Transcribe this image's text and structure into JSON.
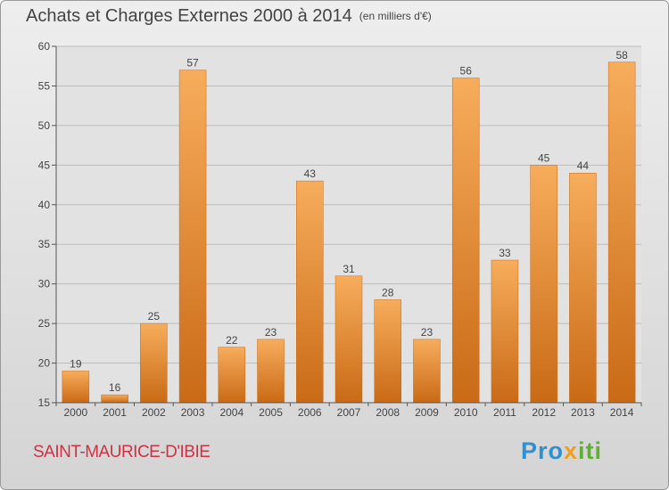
{
  "header": {
    "title": "Achats et Charges Externes 2000 à 2014",
    "unit": "(en milliers d'€)"
  },
  "footer": {
    "commune": "SAINT-MAURICE-D'IBIE",
    "logo": {
      "p1": "Pro",
      "p2": "x",
      "p3": "iti"
    }
  },
  "colors": {
    "bar": "#ef9438",
    "bar_light": "#f7ad5c",
    "bar_dark": "#c96a16",
    "grid": "#bdbdbd",
    "text": "#444444",
    "commune": "#cc3344",
    "logo_blue": "#2f8fd0",
    "logo_pink": "#e84c8c",
    "logo_orange": "#f0a020",
    "logo_green": "#5fb030"
  },
  "chart_data": {
    "type": "bar",
    "title": "Achats et Charges Externes 2000 à 2014",
    "subtitle": "(en milliers d'€)",
    "categories": [
      "2000",
      "2001",
      "2002",
      "2003",
      "2004",
      "2005",
      "2006",
      "2007",
      "2008",
      "2009",
      "2010",
      "2011",
      "2012",
      "2013",
      "2014"
    ],
    "values": [
      19,
      16,
      25,
      57,
      22,
      23,
      43,
      31,
      28,
      23,
      56,
      33,
      45,
      44,
      58
    ],
    "ylim": [
      15,
      60
    ],
    "yticks": [
      15,
      20,
      25,
      30,
      35,
      40,
      45,
      50,
      55,
      60
    ],
    "xlabel": "",
    "ylabel": "",
    "grid": true,
    "legend": "none"
  }
}
